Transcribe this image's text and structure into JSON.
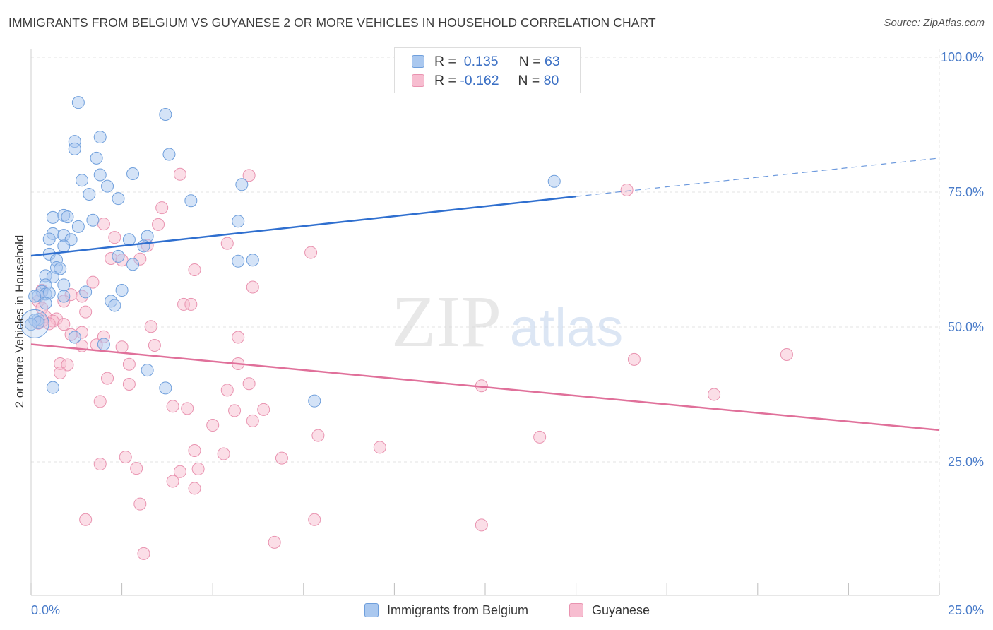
{
  "title": "IMMIGRANTS FROM BELGIUM VS GUYANESE 2 OR MORE VEHICLES IN HOUSEHOLD CORRELATION CHART",
  "source": "Source: ZipAtlas.com",
  "watermark": {
    "zip": "ZIP",
    "atlas": "atlas"
  },
  "legend": {
    "rows": [
      {
        "r_label": "R =",
        "r_value": "0.135",
        "n_label": "N =",
        "n_value": "63"
      },
      {
        "r_label": "R =",
        "r_value": "-0.162",
        "n_label": "N =",
        "n_value": "80"
      }
    ]
  },
  "bottom_legend": [
    "Immigrants from Belgium",
    "Guyanese"
  ],
  "colors": {
    "blue_fill": "#aac8ef",
    "blue_stroke": "#6f9fdc",
    "blue_line": "#2f6fcf",
    "pink_fill": "#f7bdd0",
    "pink_stroke": "#e993b0",
    "pink_line": "#e0709a",
    "axis_text": "#4a7cc9"
  },
  "chart_data": {
    "type": "scatter",
    "xlabel": "",
    "ylabel": "2 or more Vehicles in Household",
    "xlim": [
      0,
      25
    ],
    "ylim": [
      0,
      105
    ],
    "x_ticks": [
      "0.0%",
      "25.0%"
    ],
    "y_ticks": [
      "25.0%",
      "50.0%",
      "75.0%",
      "100.0%"
    ],
    "grid": true,
    "legend_position": "top-center",
    "series": [
      {
        "name": "Immigrants from Belgium",
        "color": "#aac8ef",
        "trend": {
          "x": [
            0,
            15
          ],
          "y": [
            63.2,
            74.2
          ],
          "dashed_to": [
            25,
            81.3
          ]
        },
        "points": [
          [
            1.3,
            91.6
          ],
          [
            3.7,
            89.4
          ],
          [
            1.2,
            84.4
          ],
          [
            1.9,
            85.2
          ],
          [
            1.2,
            83.0
          ],
          [
            1.8,
            81.3
          ],
          [
            3.8,
            82.0
          ],
          [
            1.9,
            78.2
          ],
          [
            2.8,
            78.4
          ],
          [
            1.4,
            77.2
          ],
          [
            2.1,
            76.1
          ],
          [
            5.8,
            76.4
          ],
          [
            14.4,
            77.0
          ],
          [
            1.6,
            74.6
          ],
          [
            2.4,
            73.8
          ],
          [
            4.4,
            73.4
          ],
          [
            0.6,
            70.3
          ],
          [
            0.9,
            70.7
          ],
          [
            1.0,
            70.4
          ],
          [
            1.7,
            69.8
          ],
          [
            1.3,
            68.6
          ],
          [
            5.7,
            69.6
          ],
          [
            0.6,
            67.3
          ],
          [
            0.9,
            67.0
          ],
          [
            0.5,
            66.3
          ],
          [
            1.1,
            66.2
          ],
          [
            0.9,
            65.0
          ],
          [
            2.7,
            66.2
          ],
          [
            3.2,
            66.8
          ],
          [
            3.1,
            65.0
          ],
          [
            0.5,
            63.5
          ],
          [
            2.4,
            63.1
          ],
          [
            0.7,
            62.4
          ],
          [
            5.7,
            62.2
          ],
          [
            6.1,
            62.4
          ],
          [
            2.8,
            61.6
          ],
          [
            0.7,
            61.0
          ],
          [
            0.8,
            60.8
          ],
          [
            0.4,
            59.5
          ],
          [
            0.6,
            59.3
          ],
          [
            0.4,
            57.8
          ],
          [
            0.9,
            57.8
          ],
          [
            0.3,
            56.6
          ],
          [
            0.4,
            56.1
          ],
          [
            0.5,
            56.3
          ],
          [
            0.2,
            55.8
          ],
          [
            1.5,
            56.5
          ],
          [
            2.5,
            56.8
          ],
          [
            0.9,
            55.7
          ],
          [
            0.1,
            55.7
          ],
          [
            0.4,
            54.4
          ],
          [
            2.2,
            54.8
          ],
          [
            2.3,
            54.0
          ],
          [
            0.2,
            51.4
          ],
          [
            0.1,
            51.3
          ],
          [
            0.2,
            50.8
          ],
          [
            0.0,
            50.5
          ],
          [
            1.2,
            48.1
          ],
          [
            2.0,
            46.8
          ],
          [
            3.2,
            42.0
          ],
          [
            3.7,
            38.7
          ],
          [
            0.6,
            38.8
          ],
          [
            7.8,
            36.3
          ]
        ]
      },
      {
        "name": "Guyanese",
        "color": "#f7bdd0",
        "trend": {
          "x": [
            0,
            25
          ],
          "y": [
            46.8,
            30.9
          ]
        },
        "points": [
          [
            4.1,
            78.3
          ],
          [
            6.0,
            78.1
          ],
          [
            16.4,
            75.4
          ],
          [
            3.6,
            72.1
          ],
          [
            2.0,
            69.1
          ],
          [
            3.5,
            69.0
          ],
          [
            2.3,
            66.6
          ],
          [
            3.2,
            65.1
          ],
          [
            5.4,
            65.5
          ],
          [
            7.7,
            63.8
          ],
          [
            2.2,
            62.7
          ],
          [
            2.5,
            62.4
          ],
          [
            3.0,
            62.6
          ],
          [
            4.5,
            60.6
          ],
          [
            1.7,
            58.3
          ],
          [
            6.1,
            57.4
          ],
          [
            0.3,
            56.8
          ],
          [
            1.1,
            56.0
          ],
          [
            1.4,
            55.7
          ],
          [
            0.9,
            54.8
          ],
          [
            0.2,
            54.8
          ],
          [
            0.3,
            53.5
          ],
          [
            4.2,
            54.2
          ],
          [
            4.4,
            54.2
          ],
          [
            1.5,
            52.8
          ],
          [
            0.4,
            51.9
          ],
          [
            0.7,
            51.5
          ],
          [
            0.6,
            51.1
          ],
          [
            0.3,
            51.1
          ],
          [
            0.2,
            50.7
          ],
          [
            0.5,
            50.6
          ],
          [
            0.9,
            50.5
          ],
          [
            3.3,
            50.1
          ],
          [
            1.4,
            49.0
          ],
          [
            1.1,
            48.6
          ],
          [
            2.0,
            48.2
          ],
          [
            5.7,
            48.1
          ],
          [
            3.4,
            46.6
          ],
          [
            2.5,
            46.3
          ],
          [
            1.8,
            46.7
          ],
          [
            1.4,
            46.5
          ],
          [
            16.6,
            44.0
          ],
          [
            20.8,
            44.9
          ],
          [
            0.8,
            43.2
          ],
          [
            1.0,
            43.0
          ],
          [
            2.7,
            43.1
          ],
          [
            5.7,
            43.2
          ],
          [
            0.8,
            41.5
          ],
          [
            2.1,
            40.5
          ],
          [
            2.7,
            39.4
          ],
          [
            6.0,
            39.5
          ],
          [
            12.4,
            39.1
          ],
          [
            5.4,
            38.3
          ],
          [
            18.8,
            37.5
          ],
          [
            1.9,
            36.2
          ],
          [
            3.9,
            35.3
          ],
          [
            4.3,
            34.9
          ],
          [
            5.6,
            34.5
          ],
          [
            6.4,
            34.7
          ],
          [
            6.1,
            32.6
          ],
          [
            5.0,
            31.8
          ],
          [
            7.9,
            29.9
          ],
          [
            14.0,
            29.6
          ],
          [
            9.6,
            27.7
          ],
          [
            4.5,
            27.1
          ],
          [
            5.3,
            26.5
          ],
          [
            2.6,
            25.9
          ],
          [
            6.9,
            25.7
          ],
          [
            1.9,
            24.6
          ],
          [
            2.9,
            23.8
          ],
          [
            4.6,
            23.7
          ],
          [
            4.1,
            23.2
          ],
          [
            3.9,
            21.4
          ],
          [
            4.5,
            20.1
          ],
          [
            3.0,
            17.2
          ],
          [
            1.5,
            14.3
          ],
          [
            7.8,
            14.3
          ],
          [
            12.4,
            13.3
          ],
          [
            6.7,
            10.1
          ],
          [
            3.1,
            8.0
          ]
        ]
      }
    ]
  }
}
